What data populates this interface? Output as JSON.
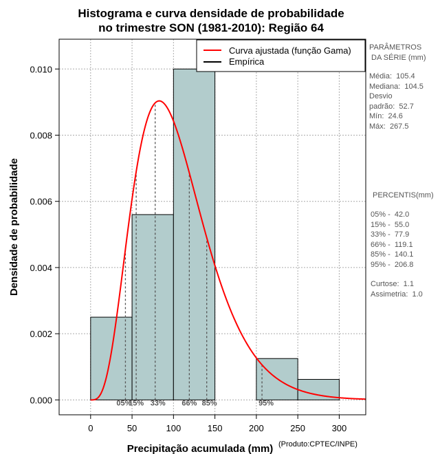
{
  "chart_data": {
    "type": "histogram",
    "title_line1": "Histograma e curva densidade de probabilidade",
    "title_line2": "no trimestre SON (1981-2010): Região 64",
    "xlabel": "Precipitação acumulada (mm)",
    "ylabel": "Densidade de probabilidade",
    "credit": "(Produto:CPTEC/INPE)",
    "xlim": [
      -38,
      332
    ],
    "ylim": [
      -0.00045,
      0.0109
    ],
    "xticks": [
      0,
      50,
      100,
      150,
      200,
      250,
      300
    ],
    "xtick_labels": [
      "0",
      "50",
      "100",
      "150",
      "200",
      "250",
      "300"
    ],
    "yticks": [
      0.0,
      0.002,
      0.004,
      0.006,
      0.008,
      0.01
    ],
    "ytick_labels": [
      "0.000",
      "0.002",
      "0.004",
      "0.006",
      "0.008",
      "0.010"
    ],
    "bins": [
      {
        "start": 0,
        "end": 50,
        "density": 0.0025
      },
      {
        "start": 50,
        "end": 100,
        "density": 0.0056
      },
      {
        "start": 100,
        "end": 150,
        "density": 0.01
      },
      {
        "start": 150,
        "end": 200,
        "density": 0.0
      },
      {
        "start": 200,
        "end": 250,
        "density": 0.00125
      },
      {
        "start": 250,
        "end": 300,
        "density": 0.00062
      }
    ],
    "gamma_fit": {
      "shape": 4.68,
      "scale": 22.5,
      "x_range": [
        0,
        332
      ]
    },
    "percentiles": [
      {
        "label": "05%",
        "value": 42.0
      },
      {
        "label": "15%",
        "value": 55.0
      },
      {
        "label": "33%",
        "value": 77.9
      },
      {
        "label": "66%",
        "value": 119.1
      },
      {
        "label": "85%",
        "value": 140.1
      },
      {
        "label": "95%",
        "value": 206.8
      }
    ],
    "legend": [
      {
        "label": "Curva ajustada (função Gama)",
        "color": "#ff0000"
      },
      {
        "label": "Empírica",
        "color": "#000000"
      }
    ],
    "colors": {
      "bar_fill": "#b2cccc",
      "curve": "#ff0000",
      "grid": "#aaaaaa"
    },
    "grid": true,
    "legend_position": "top-right"
  },
  "side_panel": {
    "params_header": "PARÂMETROS\n DA SÉRIE (mm)",
    "stats": "Média:  105.4\nMediana:  104.5\nDesvio\npadrão:  52.7\nMín:  24.6\nMáx:  267.5",
    "pct_header": "PERCENTIS(mm)",
    "pct_values": "05% -  42.0\n15% -  55.0\n33% -  77.9\n66% -  119.1\n85% -  140.1\n95% -  206.8",
    "shape_stats": "Curtose:  1.1\nAssimetria:  1.0"
  }
}
